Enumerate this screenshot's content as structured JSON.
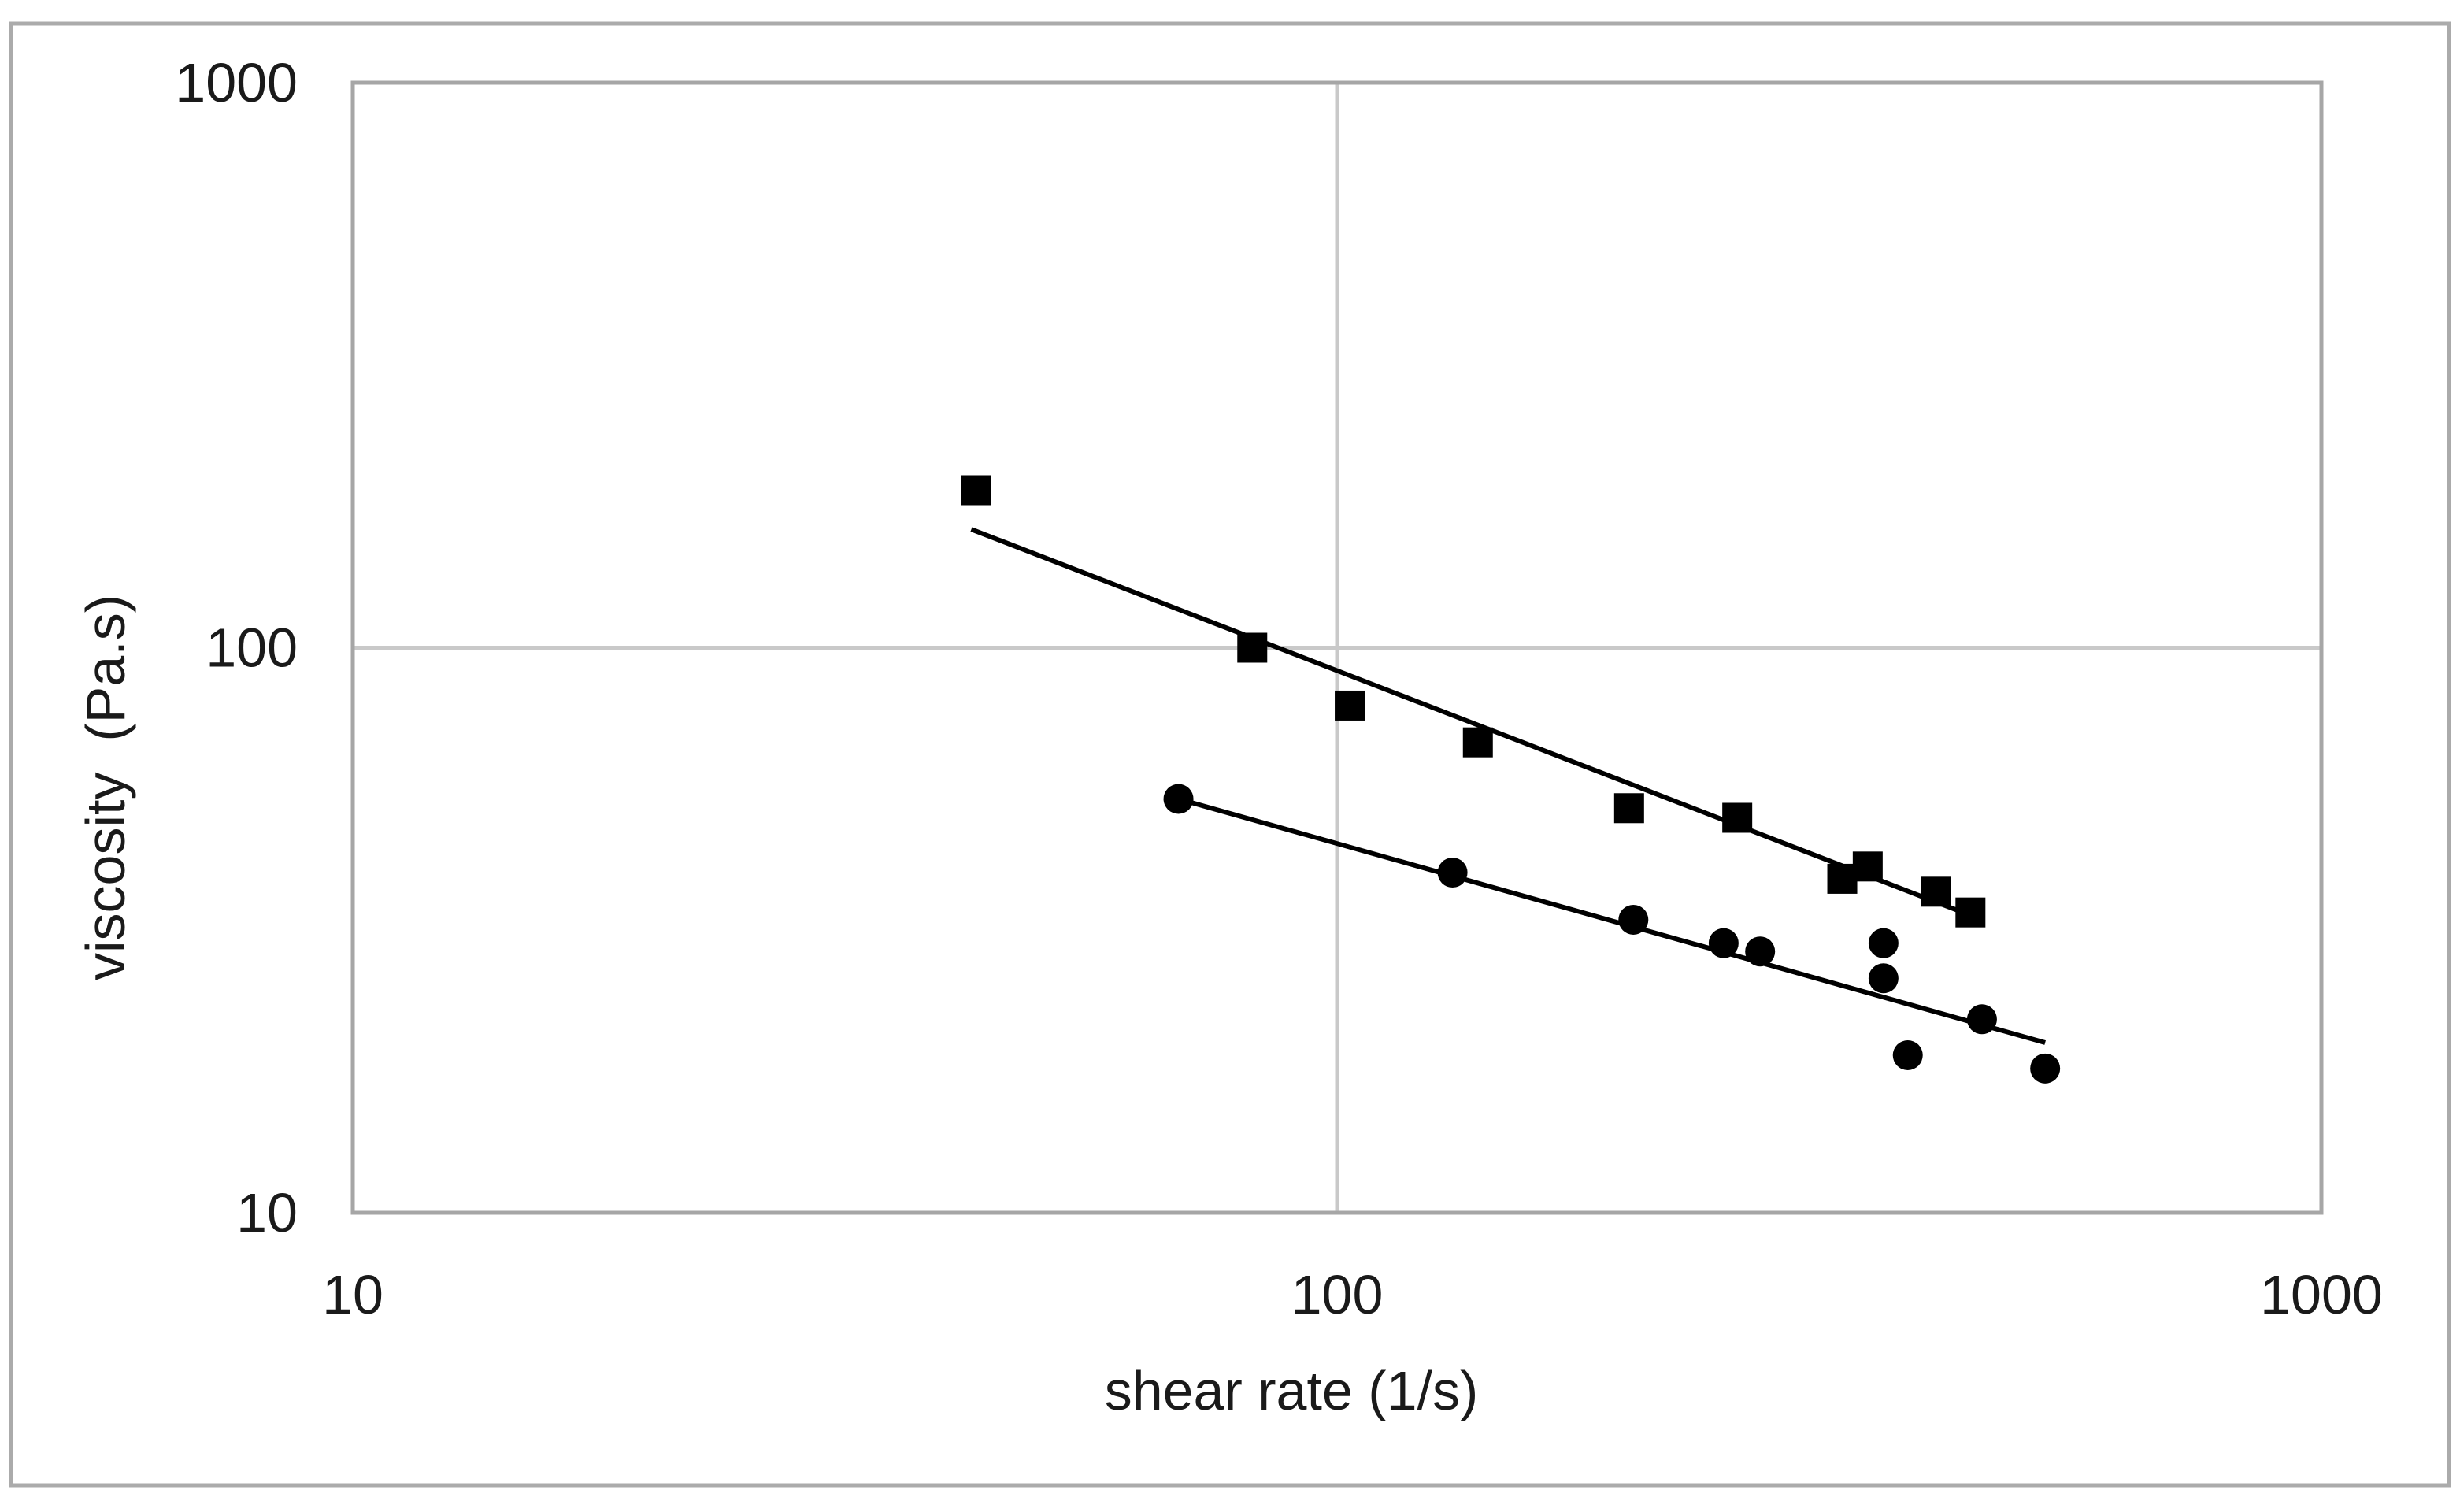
{
  "figure": {
    "background": "#ffffff",
    "outer_border_color": "#ababab"
  },
  "chart_data": {
    "type": "scatter",
    "title": "",
    "xlabel": "shear rate (1/s)",
    "ylabel": "viscosity  (Pa.s)",
    "x_scale": "log",
    "y_scale": "log",
    "xlim": [
      10,
      1000
    ],
    "ylim": [
      10,
      1000
    ],
    "x_ticks": [
      "10",
      "100",
      "1000"
    ],
    "y_ticks": [
      "10",
      "100",
      "1000"
    ],
    "grid": {
      "x_values": [
        100
      ],
      "y_values": [
        100
      ],
      "visible": true
    },
    "legend_position": "none",
    "colors": {
      "marker": "#000000",
      "trendline": "#000000",
      "gridline": "#c9c9c9",
      "frame": "#a6a6a6",
      "text": "#1a1a1a"
    },
    "series": [
      {
        "name": "squares",
        "marker": "square",
        "points": [
          [
            43,
            190
          ],
          [
            82,
            100
          ],
          [
            103,
            79
          ],
          [
            139,
            68
          ],
          [
            198,
            52
          ],
          [
            255,
            50
          ],
          [
            326,
            39
          ],
          [
            346,
            41
          ],
          [
            406,
            37
          ],
          [
            440,
            34
          ]
        ],
        "trendline": {
          "from": [
            42.5,
            162
          ],
          "to": [
            452,
            33
          ]
        }
      },
      {
        "name": "circles",
        "marker": "circle",
        "points": [
          [
            69,
            54
          ],
          [
            131,
            40
          ],
          [
            200,
            33
          ],
          [
            247,
            30
          ],
          [
            269,
            29
          ],
          [
            359,
            30
          ],
          [
            359,
            26
          ],
          [
            380,
            19
          ],
          [
            452,
            22
          ],
          [
            524,
            18
          ]
        ],
        "trendline": {
          "from": [
            69,
            54
          ],
          "to": [
            524,
            20
          ]
        }
      }
    ]
  }
}
